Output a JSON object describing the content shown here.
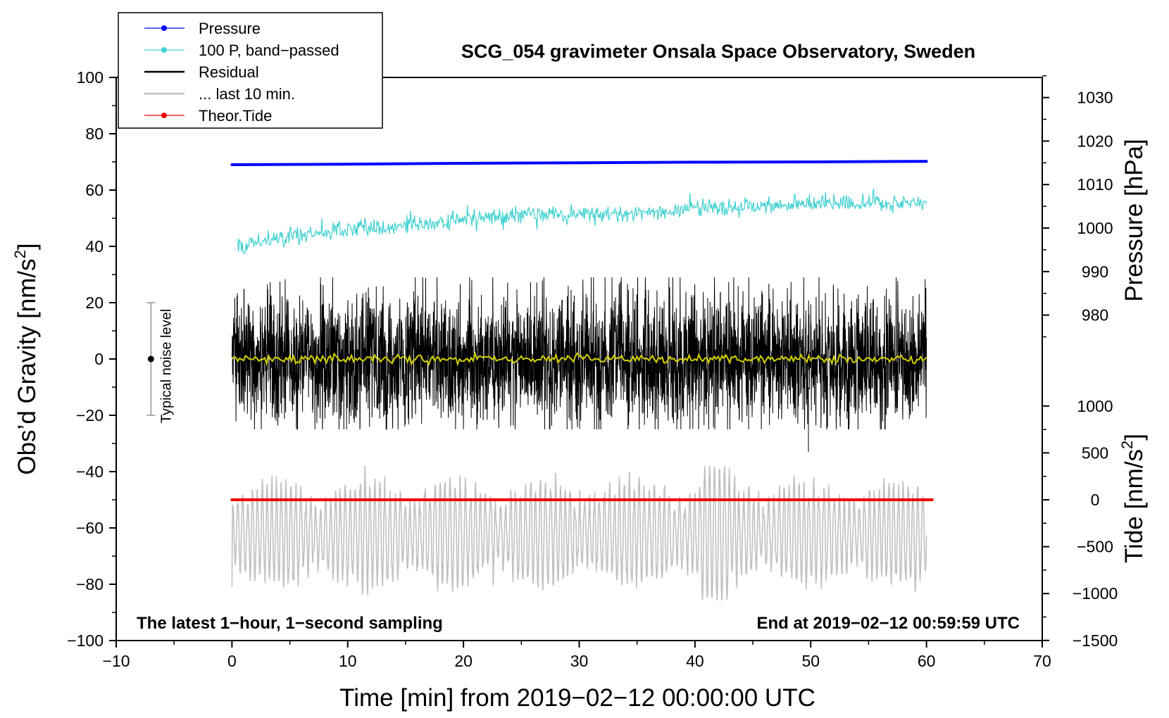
{
  "chart_data": {
    "type": "line",
    "title": "SCG_054 gravimeter Onsala Space Observatory, Sweden",
    "xlabel": "Time [min] from 2019−02−12 00:00:00 UTC",
    "ylabel_left": "Obs’d Gravity [nm/s",
    "ylabel_left_sup": "2",
    "ylabel_left_end": "]",
    "ylabel_right_top": "Pressure [hPa]",
    "ylabel_right_bottom": "Tide [nm/s",
    "ylabel_right_bottom_sup": "2",
    "ylabel_right_bottom_end": "]",
    "xlim": [
      -10,
      70
    ],
    "ylim": [
      -100,
      100
    ],
    "xticks": [
      -10,
      0,
      10,
      20,
      30,
      40,
      50,
      60,
      70
    ],
    "xtick_labels": [
      "−10",
      "0",
      "10",
      "20",
      "30",
      "40",
      "50",
      "60",
      "70"
    ],
    "yticks": [
      -100,
      -80,
      -60,
      -40,
      -20,
      0,
      20,
      40,
      60,
      80,
      100
    ],
    "ytick_labels": [
      "−100",
      "−80",
      "−60",
      "−40",
      "−20",
      "0",
      "20",
      "40",
      "60",
      "80",
      "100"
    ],
    "pressure_axis": {
      "ticks": [
        980,
        990,
        1000,
        1010,
        1020,
        1030
      ],
      "tick_labels": [
        "980",
        "990",
        "1000",
        "1010",
        "1020",
        "1030"
      ],
      "gravity_at_1000": 46.5,
      "gravity_per_hpa": 1.545
    },
    "tide_axis": {
      "ticks": [
        -1500,
        -1000,
        -500,
        0,
        500,
        1000
      ],
      "tick_labels": [
        "−1500",
        "−1000",
        "−500",
        "0",
        "500",
        "1000"
      ],
      "gravity_at_0": -50,
      "gravity_per_unit": 0.0333
    },
    "series": [
      {
        "name": "Pressure",
        "color": "#0000ff",
        "kind": "trend",
        "x": [
          0,
          10,
          20,
          30,
          40,
          50,
          60
        ],
        "y": [
          69.0,
          69.2,
          69.5,
          69.7,
          69.9,
          70.0,
          70.2
        ]
      },
      {
        "name": "100 P, band−passed",
        "color": "#40d0d0",
        "kind": "noisy",
        "x": [
          0.5,
          5,
          10,
          15,
          20,
          25,
          30,
          35,
          40,
          45,
          50,
          55,
          60
        ],
        "y": [
          40,
          43.5,
          46,
          47.5,
          49.5,
          51,
          51.5,
          52,
          53.5,
          54.5,
          55,
          55.5,
          55.5
        ],
        "noise": 2.5,
        "spike_min": 37
      },
      {
        "name": "Residual",
        "color": "#000000",
        "kind": "residual",
        "x": [
          0,
          60
        ],
        "y": [
          0,
          0
        ],
        "noise": 12,
        "max": 29,
        "min": -33
      },
      {
        "name": "... last 10 min.",
        "color": "#c0c0c0",
        "kind": "oscillation",
        "x": [
          0,
          60
        ],
        "y": [
          -62,
          -62
        ],
        "min": -87,
        "max": -37
      },
      {
        "name": "Theor.Tide",
        "color": "#ee0000",
        "kind": "trend",
        "x": [
          0,
          60.5
        ],
        "y": [
          -50,
          -50
        ]
      },
      {
        "name": "smoothed residual",
        "color": "#d0d000",
        "kind": "smooth",
        "x": [
          0,
          60
        ],
        "y": [
          0,
          0
        ]
      }
    ],
    "legend": {
      "placement": "top-left",
      "entries": [
        "Pressure",
        "100 P, band−passed",
        "Residual",
        "... last 10 min.",
        "Theor.Tide"
      ]
    },
    "noise_bar": {
      "label": "Typical noise level",
      "x": -7,
      "center": 0,
      "low": -20,
      "high": 20
    },
    "annotations": {
      "bottom_left": "The latest 1−hour, 1−second sampling",
      "bottom_right": "End at 2019−02−12 00:59:59 UTC"
    }
  }
}
